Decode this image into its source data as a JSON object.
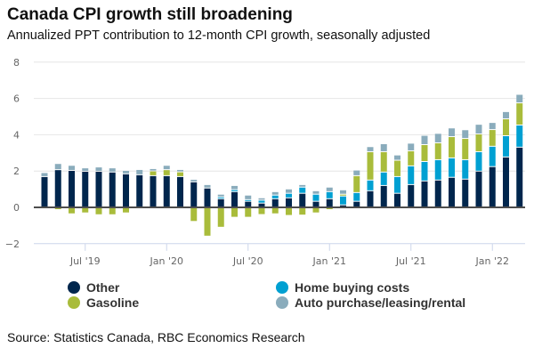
{
  "header": {
    "title": "Canada CPI growth still broadening",
    "subtitle": "Annualized PPT contribution to 12-month CPI growth, seasonally adjusted"
  },
  "source": "Source: Statistics Canada, RBC Economics Research",
  "chart_data": {
    "type": "bar",
    "stacked": true,
    "title": "Canada CPI growth still broadening",
    "subtitle": "Annualized PPT contribution to 12-month CPI growth, seasonally adjusted",
    "xlabel": "",
    "ylabel": "",
    "ylim": [
      -2,
      8
    ],
    "yticks": [
      -2,
      0,
      2,
      4,
      6,
      8
    ],
    "grid": true,
    "legend": "bottom",
    "x_tick_labels": [
      {
        "label": "Jul '19",
        "index": 3
      },
      {
        "label": "Jan '20",
        "index": 9
      },
      {
        "label": "Jul '20",
        "index": 15
      },
      {
        "label": "Jan '21",
        "index": 21
      },
      {
        "label": "Jul '21",
        "index": 27
      },
      {
        "label": "Jan '22",
        "index": 33
      }
    ],
    "categories": [
      "Apr 2019",
      "May 2019",
      "Jun 2019",
      "Jul 2019",
      "Aug 2019",
      "Sep 2019",
      "Oct 2019",
      "Nov 2019",
      "Dec 2019",
      "Jan 2020",
      "Feb 2020",
      "Mar 2020",
      "Apr 2020",
      "May 2020",
      "Jun 2020",
      "Jul 2020",
      "Aug 2020",
      "Sep 2020",
      "Oct 2020",
      "Nov 2020",
      "Dec 2020",
      "Jan 2021",
      "Feb 2021",
      "Mar 2021",
      "Apr 2021",
      "May 2021",
      "Jun 2021",
      "Jul 2021",
      "Aug 2021",
      "Sep 2021",
      "Oct 2021",
      "Nov 2021",
      "Dec 2021",
      "Jan 2022",
      "Feb 2022",
      "Mar 2022"
    ],
    "series": [
      {
        "name": "Other",
        "color": "#00264d",
        "values": [
          1.72,
          2.1,
          2.06,
          2.01,
          2.01,
          1.97,
          1.87,
          1.82,
          1.77,
          1.77,
          1.72,
          1.43,
          1.09,
          0.5,
          0.89,
          0.36,
          0.26,
          0.5,
          0.55,
          0.8,
          0.36,
          0.5,
          0.16,
          0.36,
          0.94,
          1.23,
          0.8,
          1.28,
          1.48,
          1.53,
          1.68,
          1.58,
          2.02,
          2.27,
          2.8,
          3.34
        ]
      },
      {
        "name": "Home buying costs",
        "color": "#00a0d2",
        "values": [
          0,
          0,
          0,
          0,
          0,
          0,
          0,
          0,
          0,
          0,
          0,
          0,
          0,
          0.1,
          0.11,
          0.09,
          0.16,
          0.2,
          0.25,
          0.34,
          0.39,
          0.39,
          0.49,
          0.48,
          0.59,
          0.74,
          0.92,
          1.03,
          1.07,
          1.12,
          1.07,
          1.07,
          1.07,
          1.12,
          1.17,
          1.22
        ]
      },
      {
        "name": "Gasoline",
        "color": "#a9bc3b",
        "values": [
          -0.05,
          -0.1,
          -0.33,
          -0.28,
          -0.38,
          -0.38,
          -0.28,
          0,
          0.26,
          0.33,
          0.26,
          -0.75,
          -1.56,
          -1.07,
          -0.52,
          -0.52,
          -0.37,
          -0.33,
          -0.42,
          -0.4,
          -0.28,
          -0.1,
          0.1,
          0.93,
          1.56,
          1.12,
          0.9,
          0.83,
          0.93,
          0.93,
          1.17,
          1.17,
          0.98,
          0.92,
          0.93,
          1.22
        ]
      },
      {
        "name": "Auto purchase/leasing/rental",
        "color": "#8aacbc",
        "values": [
          0.22,
          0.34,
          0.28,
          0.19,
          0.24,
          0.23,
          0.19,
          0.29,
          0.13,
          0.24,
          0.13,
          0.14,
          0.19,
          0.15,
          0.23,
          0.25,
          0.13,
          0.19,
          0.24,
          0.14,
          0.19,
          0.25,
          0.24,
          0.31,
          0.28,
          0.44,
          0.29,
          0.42,
          0.51,
          0.52,
          0.48,
          0.48,
          0.53,
          0.39,
          0.4,
          0.47
        ]
      }
    ]
  }
}
